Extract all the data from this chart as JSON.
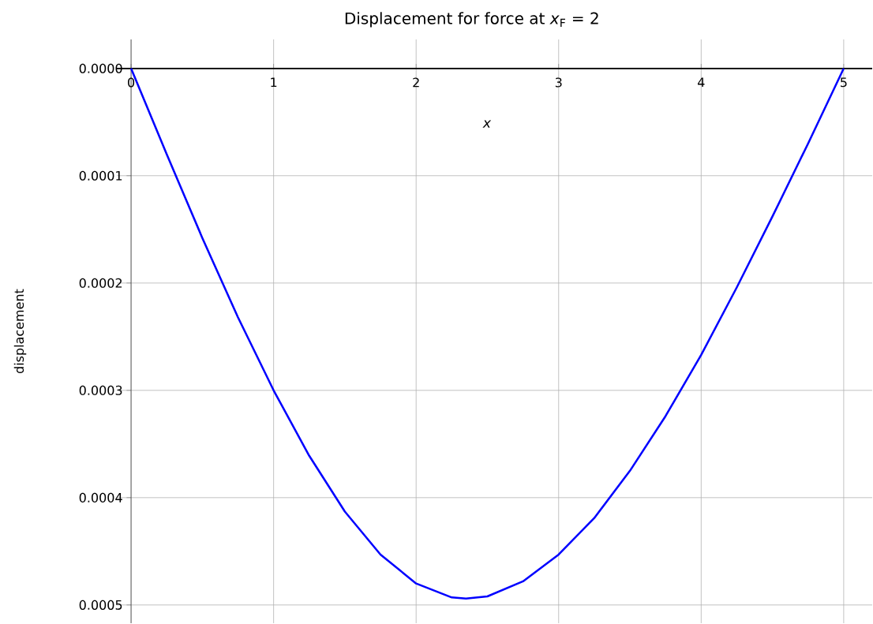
{
  "chart_data": {
    "type": "line",
    "title": "Displacement for force at *x*$_{F}$ = 2",
    "xlabel": "x",
    "ylabel": "displacement",
    "xlim": [
      -0.1,
      5.2
    ],
    "ylim": [
      0.000517,
      -2.7e-05
    ],
    "xticks": [
      0,
      1,
      2,
      3,
      4,
      5
    ],
    "yticks": [
      {
        "value": 0,
        "label": "0.0000"
      },
      {
        "value": 0.0001,
        "label": "0.0001"
      },
      {
        "value": 0.0002,
        "label": "0.0002"
      },
      {
        "value": 0.0003,
        "label": "0.0003"
      },
      {
        "value": 0.0004,
        "label": "0.0004"
      },
      {
        "value": 0.0005,
        "label": "0.0005"
      }
    ],
    "grid": true,
    "line_style": "solid",
    "series": [
      {
        "color": "#0000ff",
        "x": [
          0,
          0.25,
          0.5,
          0.75,
          1,
          1.25,
          1.5,
          1.75,
          2,
          2.25,
          2.35,
          2.5,
          2.75,
          3,
          3.25,
          3.5,
          3.75,
          4,
          4.25,
          4.5,
          4.75,
          5
        ],
        "values": [
          0,
          8e-05,
          0.000158,
          0.000232,
          0.0003,
          0.000361,
          0.000413,
          0.000453,
          0.00048,
          0.000493,
          0.000494,
          0.000492,
          0.000478,
          0.000453,
          0.000419,
          0.000375,
          0.000324,
          0.000267,
          0.000204,
          0.000138,
          7e-05,
          0
        ]
      }
    ]
  }
}
